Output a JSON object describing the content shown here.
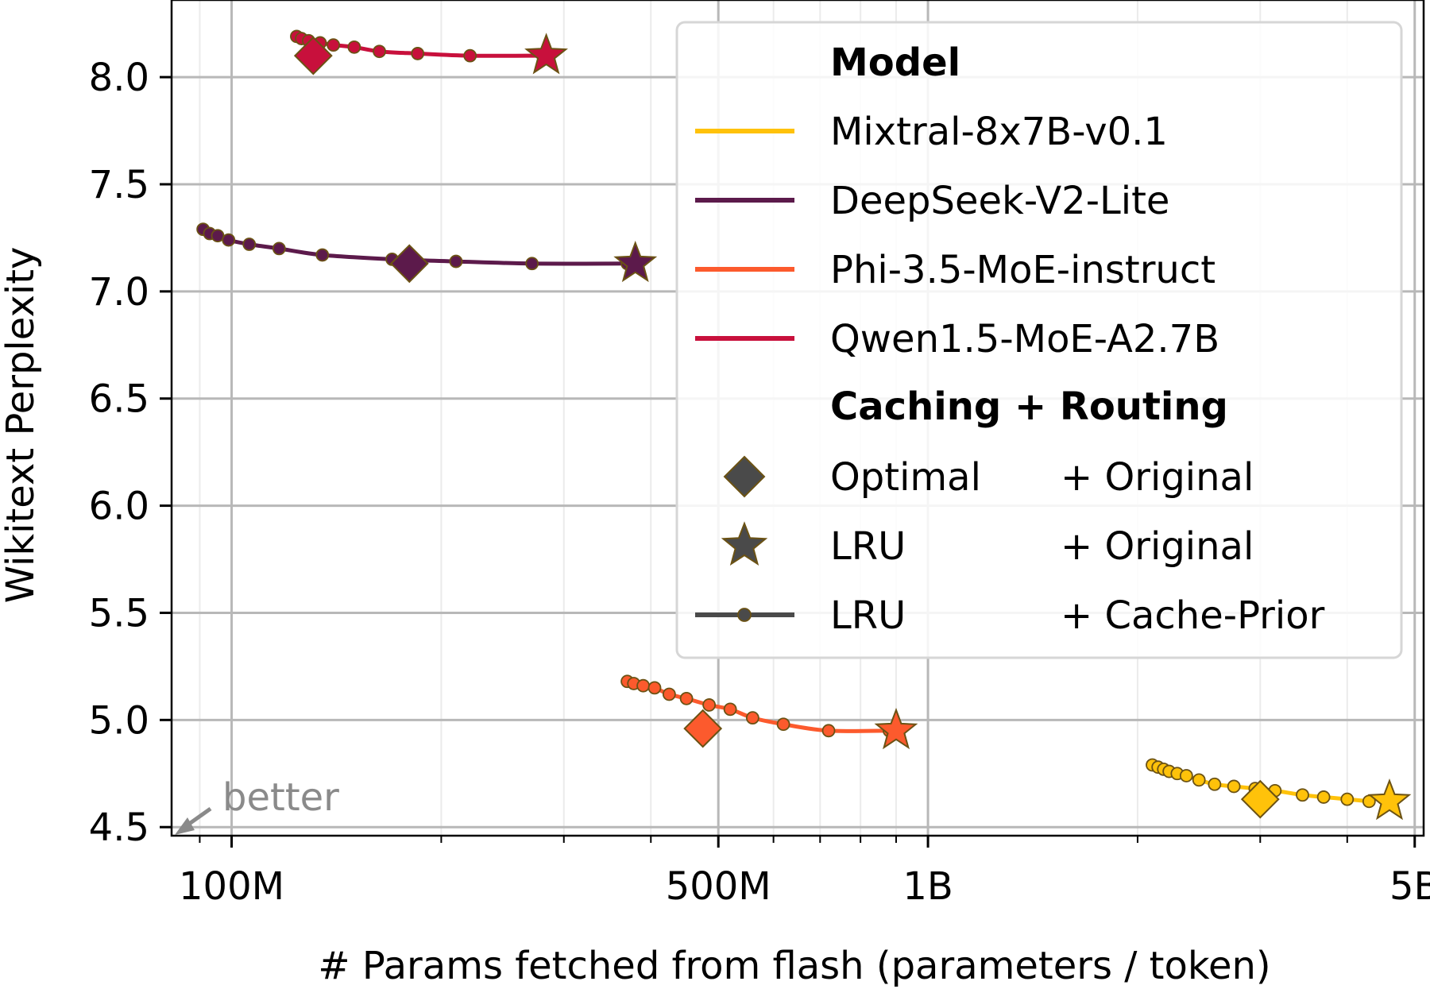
{
  "chart_data": {
    "type": "scatter",
    "xlabel": "# Params fetched from flash (parameters / token)",
    "ylabel": "Wikitext Perplexity",
    "xscale": "log",
    "xlim": [
      82000000,
      5150000000
    ],
    "ylim": [
      4.46,
      8.36
    ],
    "grid": true,
    "x_ticks": [
      {
        "value": 100000000,
        "label": "100M"
      },
      {
        "value": 500000000,
        "label": "500M"
      },
      {
        "value": 1000000000,
        "label": "1B"
      },
      {
        "value": 5000000000,
        "label": "5B"
      }
    ],
    "y_ticks": [
      {
        "value": 4.5,
        "label": "4.5"
      },
      {
        "value": 5.0,
        "label": "5.0"
      },
      {
        "value": 5.5,
        "label": "5.5"
      },
      {
        "value": 6.0,
        "label": "6.0"
      },
      {
        "value": 6.5,
        "label": "6.5"
      },
      {
        "value": 7.0,
        "label": "7.0"
      },
      {
        "value": 7.5,
        "label": "7.5"
      },
      {
        "value": 8.0,
        "label": "8.0"
      }
    ],
    "annotation": {
      "text": "better",
      "arrow_to": "bottom-left"
    },
    "legend": {
      "placement": "top-right",
      "model_title": "Model",
      "method_title": "Caching + Routing",
      "methods": [
        {
          "marker": "diamond",
          "caching": "Optimal",
          "routing": "+ Original"
        },
        {
          "marker": "star",
          "caching": "LRU",
          "routing": "+ Original"
        },
        {
          "marker": "line-dot",
          "caching": "LRU",
          "routing": "+ Cache-Prior"
        }
      ]
    },
    "series": [
      {
        "name": "Mixtral-8x7B-v0.1",
        "color": "#ffc20a",
        "optimal_original": {
          "x": 3000000000,
          "y": 4.63
        },
        "lru_original": {
          "x": 4600000000,
          "y": 4.62
        },
        "lru_cache_prior": [
          {
            "x": 2100000000,
            "y": 4.79
          },
          {
            "x": 2140000000,
            "y": 4.78
          },
          {
            "x": 2180000000,
            "y": 4.77
          },
          {
            "x": 2220000000,
            "y": 4.76
          },
          {
            "x": 2280000000,
            "y": 4.75
          },
          {
            "x": 2350000000,
            "y": 4.74
          },
          {
            "x": 2450000000,
            "y": 4.72
          },
          {
            "x": 2580000000,
            "y": 4.7
          },
          {
            "x": 2750000000,
            "y": 4.69
          },
          {
            "x": 2950000000,
            "y": 4.68
          },
          {
            "x": 3150000000,
            "y": 4.67
          },
          {
            "x": 3450000000,
            "y": 4.65
          },
          {
            "x": 3700000000,
            "y": 4.64
          },
          {
            "x": 4000000000,
            "y": 4.63
          },
          {
            "x": 4300000000,
            "y": 4.62
          }
        ]
      },
      {
        "name": "DeepSeek-V2-Lite",
        "color": "#5c1a4b",
        "optimal_original": {
          "x": 180000000,
          "y": 7.13
        },
        "lru_original": {
          "x": 380000000,
          "y": 7.13
        },
        "lru_cache_prior": [
          {
            "x": 91000000,
            "y": 7.29
          },
          {
            "x": 93000000,
            "y": 7.27
          },
          {
            "x": 95500000,
            "y": 7.26
          },
          {
            "x": 99000000,
            "y": 7.24
          },
          {
            "x": 106000000,
            "y": 7.22
          },
          {
            "x": 117000000,
            "y": 7.2
          },
          {
            "x": 135000000,
            "y": 7.17
          },
          {
            "x": 170000000,
            "y": 7.15
          },
          {
            "x": 210000000,
            "y": 7.14
          },
          {
            "x": 270000000,
            "y": 7.13
          },
          {
            "x": 370000000,
            "y": 7.13
          }
        ]
      },
      {
        "name": "Phi-3.5-MoE-instruct",
        "color": "#fc5a2d",
        "optimal_original": {
          "x": 475000000,
          "y": 4.96
        },
        "lru_original": {
          "x": 900000000,
          "y": 4.95
        },
        "lru_cache_prior": [
          {
            "x": 370000000,
            "y": 5.18
          },
          {
            "x": 378000000,
            "y": 5.17
          },
          {
            "x": 390000000,
            "y": 5.16
          },
          {
            "x": 405000000,
            "y": 5.15
          },
          {
            "x": 425000000,
            "y": 5.12
          },
          {
            "x": 450000000,
            "y": 5.1
          },
          {
            "x": 485000000,
            "y": 5.07
          },
          {
            "x": 520000000,
            "y": 5.05
          },
          {
            "x": 560000000,
            "y": 5.01
          },
          {
            "x": 620000000,
            "y": 4.98
          },
          {
            "x": 720000000,
            "y": 4.95
          },
          {
            "x": 880000000,
            "y": 4.95
          }
        ]
      },
      {
        "name": "Qwen1.5-MoE-A2.7B",
        "color": "#c8103c",
        "optimal_original": {
          "x": 131000000,
          "y": 8.1
        },
        "lru_original": {
          "x": 283000000,
          "y": 8.1
        },
        "lru_cache_prior": [
          {
            "x": 124000000,
            "y": 8.19
          },
          {
            "x": 126000000,
            "y": 8.18
          },
          {
            "x": 129000000,
            "y": 8.17
          },
          {
            "x": 134000000,
            "y": 8.16
          },
          {
            "x": 140000000,
            "y": 8.15
          },
          {
            "x": 150000000,
            "y": 8.14
          },
          {
            "x": 163000000,
            "y": 8.12
          },
          {
            "x": 185000000,
            "y": 8.11
          },
          {
            "x": 220000000,
            "y": 8.1
          },
          {
            "x": 280000000,
            "y": 8.1
          }
        ]
      }
    ]
  }
}
